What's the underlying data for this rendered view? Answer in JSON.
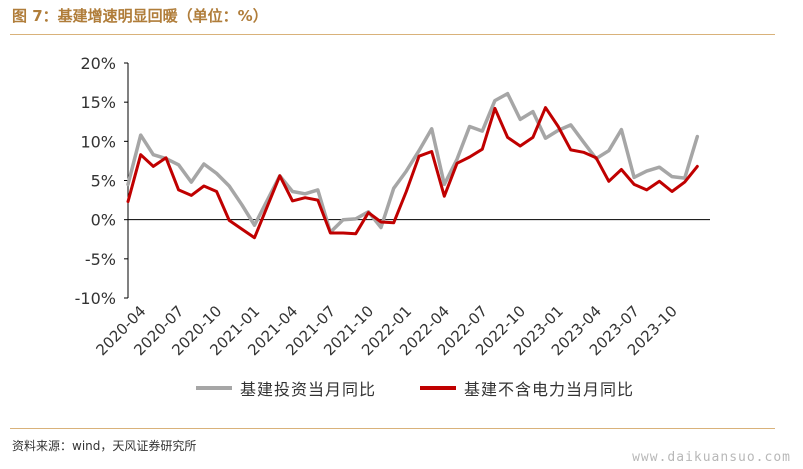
{
  "header": {
    "title": "图 7：基建增速明显回暖（单位：%）"
  },
  "footer": {
    "source": "资料来源：wind，天风证券研究所",
    "watermark": "www.daikuansuo.com"
  },
  "colors": {
    "accent": "#d9b27a",
    "title": "#b07d3a",
    "series_gray": "#a6a6a6",
    "series_red": "#c00000"
  },
  "chart_data": {
    "type": "line",
    "title": "",
    "xlabel": "",
    "ylabel": "",
    "ylim": [
      -10,
      20
    ],
    "yticks": [
      "20%",
      "15%",
      "10%",
      "5%",
      "0%",
      "-5%",
      "-10%"
    ],
    "ytick_values": [
      20,
      15,
      10,
      5,
      0,
      -5,
      -10
    ],
    "x": [
      "2020-03",
      "2020-04",
      "2020-05",
      "2020-06",
      "2020-07",
      "2020-08",
      "2020-09",
      "2020-10",
      "2020-11",
      "2020-12",
      "2021-01",
      "2021-02",
      "2021-03",
      "2021-04",
      "2021-05",
      "2021-06",
      "2021-07",
      "2021-08",
      "2021-09",
      "2021-10",
      "2021-11",
      "2021-12",
      "2022-01",
      "2022-02",
      "2022-03",
      "2022-04",
      "2022-05",
      "2022-06",
      "2022-07",
      "2022-08",
      "2022-09",
      "2022-10",
      "2022-11",
      "2022-12",
      "2023-01",
      "2023-02",
      "2023-03",
      "2023-04",
      "2023-05",
      "2023-06",
      "2023-07",
      "2023-08",
      "2023-09",
      "2023-10",
      "2023-11",
      "2023-12",
      "2024-01"
    ],
    "xtick_labels": [
      "2020-04",
      "2020-07",
      "2020-10",
      "2021-01",
      "2021-04",
      "2021-07",
      "2021-10",
      "2022-01",
      "2022-04",
      "2022-07",
      "2022-10",
      "2023-01",
      "2023-04",
      "2023-07",
      "2023-10"
    ],
    "legend_position": "bottom",
    "grid": false,
    "series": [
      {
        "name": "基建投资当月同比",
        "color": "#a6a6a6",
        "values": [
          4.5,
          10.8,
          8.3,
          7.8,
          7.0,
          4.8,
          7.1,
          5.9,
          4.3,
          1.9,
          -0.7,
          null,
          5.6,
          3.6,
          3.3,
          3.8,
          -1.6,
          0.0,
          0.1,
          1.0,
          -1.0,
          4.0,
          6.2,
          8.8,
          11.6,
          4.5,
          7.7,
          11.9,
          11.3,
          15.2,
          16.1,
          12.8,
          13.8,
          10.4,
          11.4,
          12.1,
          9.9,
          7.8,
          8.8,
          11.5,
          5.4,
          6.2,
          6.7,
          5.5,
          5.3,
          10.6,
          null
        ]
      },
      {
        "name": "基建不含电力当月同比",
        "color": "#c00000",
        "values": [
          2.3,
          8.3,
          6.8,
          7.9,
          3.8,
          3.1,
          4.3,
          3.6,
          -0.1,
          -1.2,
          -2.3,
          null,
          5.6,
          2.4,
          2.8,
          2.5,
          -1.7,
          -1.7,
          -1.8,
          0.9,
          -0.3,
          -0.4,
          3.6,
          8.1,
          8.7,
          3.0,
          7.2,
          8.0,
          9.0,
          14.2,
          10.5,
          9.4,
          10.5,
          14.3,
          11.9,
          8.9,
          8.6,
          7.9,
          4.9,
          6.4,
          4.5,
          3.8,
          4.9,
          3.6,
          4.8,
          6.8,
          null
        ]
      }
    ]
  }
}
